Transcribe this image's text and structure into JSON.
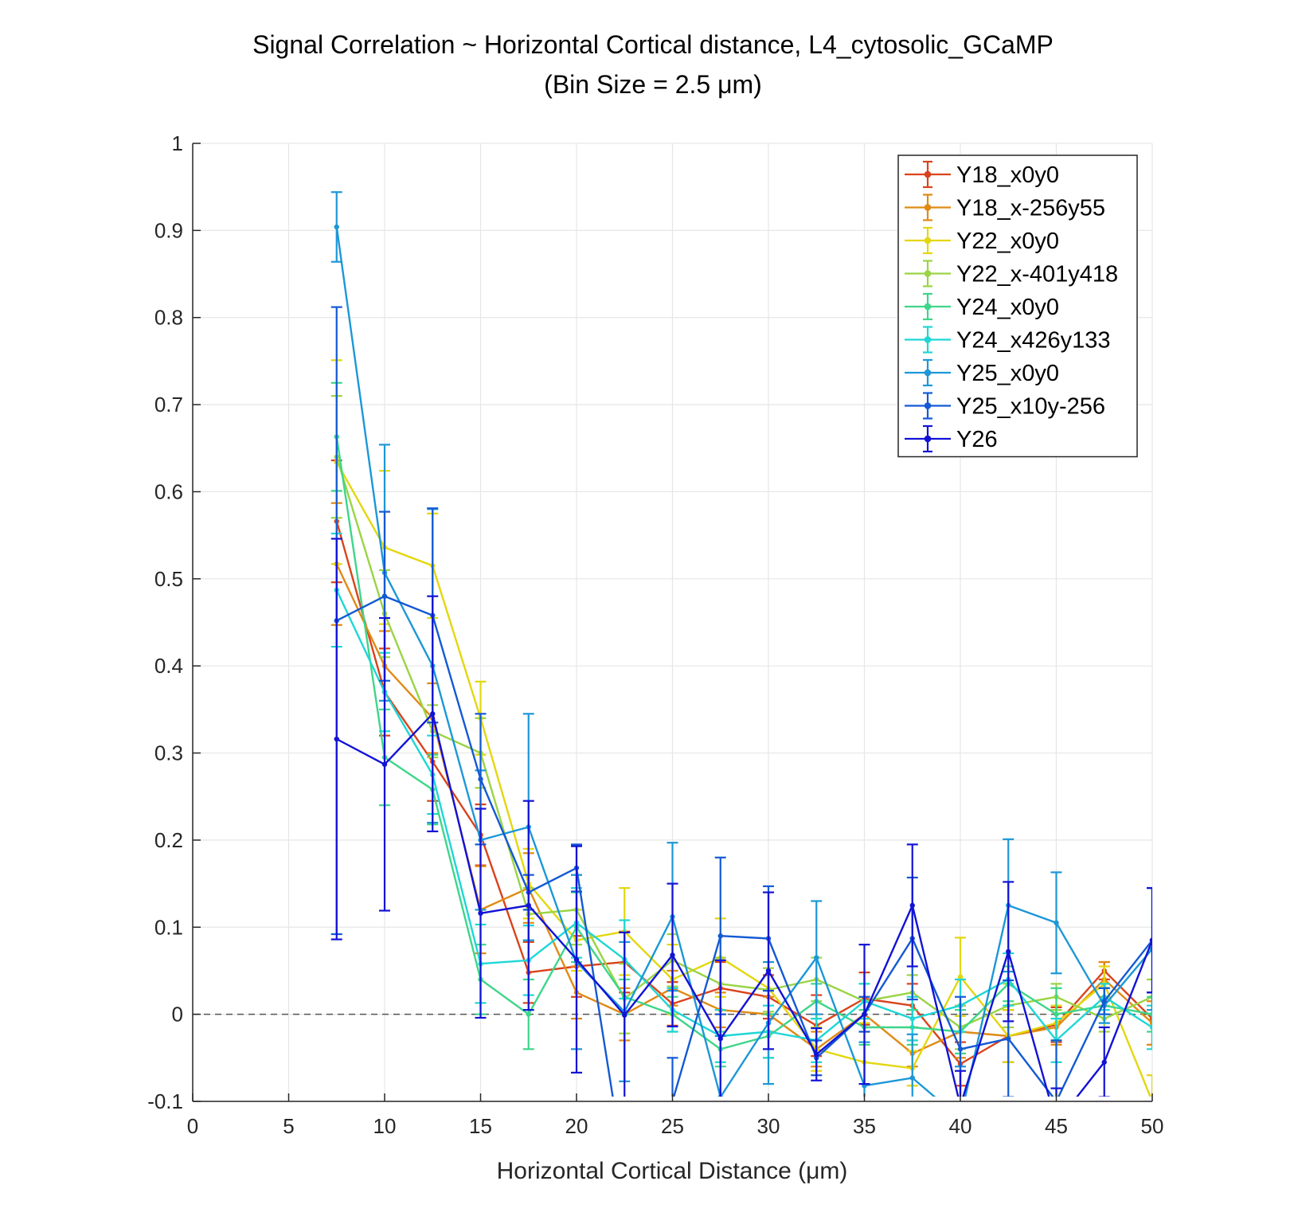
{
  "chart_data": {
    "type": "line",
    "title_line1": "Signal Correlation ~ Horizontal Cortical distance, L4_cytosolic_GCaMP",
    "title_line2": "(Bin Size = 2.5 μm)",
    "xlabel": "Horizontal Cortical Distance (μm)",
    "ylabel": "",
    "xlim": [
      0,
      50
    ],
    "ylim": [
      -0.1,
      1
    ],
    "xticks": [
      0,
      5,
      10,
      15,
      20,
      25,
      30,
      35,
      40,
      45,
      50
    ],
    "yticks": [
      -0.1,
      0,
      0.1,
      0.2,
      0.3,
      0.4,
      0.5,
      0.6,
      0.7,
      0.8,
      0.9,
      1
    ],
    "xtick_labels": [
      "0",
      "5",
      "10",
      "15",
      "20",
      "25",
      "30",
      "35",
      "40",
      "45",
      "50"
    ],
    "ytick_labels": [
      "-0.1",
      "0",
      "0.1",
      "0.2",
      "0.3",
      "0.4",
      "0.5",
      "0.6",
      "0.7",
      "0.8",
      "0.9",
      "1"
    ],
    "grid": true,
    "reference_line": 0,
    "legend_position": "top-right",
    "x": [
      7.5,
      10,
      12.5,
      15,
      17.5,
      20,
      22.5,
      25,
      27.5,
      30,
      32.5,
      35,
      37.5,
      40,
      42.5,
      45,
      47.5,
      50
    ],
    "series": [
      {
        "name": "Y18_x0y0",
        "color": "#d9431c",
        "values": [
          0.566,
          0.37,
          0.29,
          0.206,
          0.048,
          0.055,
          0.06,
          0.012,
          0.03,
          0.02,
          -0.013,
          0.018,
          0.01,
          -0.057,
          -0.025,
          -0.012,
          0.05,
          -0.005
        ],
        "err": [
          0.07,
          0.05,
          0.045,
          0.035,
          0.035,
          0.035,
          0.035,
          0.025,
          0.03,
          0.025,
          0.035,
          0.03,
          0.025,
          0.025,
          0.03,
          0.02,
          0.01,
          0.03
        ]
      },
      {
        "name": "Y18_x-256y55",
        "color": "#e08a14",
        "values": [
          0.517,
          0.4,
          0.34,
          0.12,
          0.145,
          0.025,
          0.0,
          0.03,
          0.005,
          0.0,
          -0.04,
          0.0,
          -0.045,
          -0.02,
          -0.025,
          -0.015,
          0.04,
          -0.01
        ],
        "err": [
          0.07,
          0.04,
          0.04,
          0.05,
          0.04,
          0.03,
          0.03,
          0.02,
          0.02,
          0.02,
          0.02,
          0.02,
          0.015,
          0.03,
          0.03,
          0.02,
          0.02,
          0.025
        ]
      },
      {
        "name": "Y22_x0y0",
        "color": "#e3d70f",
        "values": [
          0.634,
          0.536,
          0.515,
          0.34,
          0.15,
          0.085,
          0.095,
          0.04,
          0.065,
          0.03,
          -0.04,
          -0.055,
          -0.062,
          0.043,
          -0.025,
          -0.01,
          0.035,
          -0.1
        ],
        "err": [
          0.117,
          0.088,
          0.06,
          0.042,
          0.04,
          0.035,
          0.05,
          0.04,
          0.045,
          0.03,
          0.025,
          0.045,
          0.02,
          0.045,
          0.03,
          0.02,
          0.02,
          0.03
        ]
      },
      {
        "name": "Y22_x-401y418",
        "color": "#9ad444",
        "values": [
          0.64,
          0.46,
          0.325,
          0.3,
          0.115,
          0.12,
          0.018,
          0.062,
          0.035,
          0.028,
          0.04,
          0.015,
          0.025,
          -0.015,
          0.01,
          0.02,
          -0.005,
          0.02
        ],
        "err": [
          0.07,
          0.05,
          0.03,
          0.04,
          0.03,
          0.04,
          0.04,
          0.03,
          0.03,
          0.025,
          0.025,
          0.02,
          0.02,
          0.025,
          0.025,
          0.015,
          0.015,
          0.02
        ]
      },
      {
        "name": "Y24_x0y0",
        "color": "#3dd68a",
        "values": [
          0.663,
          0.295,
          0.258,
          0.04,
          0.0,
          0.1,
          0.02,
          0.0,
          -0.04,
          -0.025,
          0.015,
          -0.015,
          -0.015,
          -0.02,
          0.035,
          0.0,
          0.01,
          0.0
        ],
        "err": [
          0.062,
          0.055,
          0.04,
          0.04,
          0.04,
          0.04,
          0.02,
          0.02,
          0.02,
          0.025,
          0.02,
          0.02,
          0.02,
          0.025,
          0.02,
          0.03,
          0.02,
          0.02
        ]
      },
      {
        "name": "Y24_x426y133",
        "color": "#1fd6d6",
        "values": [
          0.487,
          0.37,
          0.275,
          0.058,
          0.062,
          0.105,
          0.063,
          0.005,
          -0.025,
          -0.02,
          -0.03,
          0.015,
          -0.005,
          0.01,
          0.04,
          -0.03,
          0.02,
          -0.015
        ],
        "err": [
          0.065,
          0.045,
          0.045,
          0.045,
          0.04,
          0.04,
          0.045,
          0.025,
          0.03,
          0.03,
          0.025,
          0.02,
          0.025,
          0.03,
          0.03,
          0.025,
          0.015,
          0.025
        ]
      },
      {
        "name": "Y25_x0y0",
        "color": "#1c97d8",
        "values": [
          0.904,
          0.507,
          0.4,
          0.2,
          0.215,
          0.06,
          0.003,
          0.112,
          -0.095,
          -0.01,
          0.065,
          -0.082,
          -0.073,
          -0.12,
          0.125,
          0.105,
          0.01,
          0.075
        ],
        "err": [
          0.04,
          0.147,
          0.18,
          0.08,
          0.13,
          0.1,
          0.08,
          0.085,
          0.07,
          0.07,
          0.065,
          0.05,
          0.05,
          0.06,
          0.076,
          0.058,
          0.02,
          0.07
        ]
      },
      {
        "name": "Y25_x10y-256",
        "color": "#1459d4",
        "values": [
          0.452,
          0.48,
          0.458,
          0.27,
          0.14,
          0.168,
          -0.18,
          -0.1,
          0.09,
          0.087,
          -0.05,
          0.0,
          0.087,
          -0.04,
          -0.028,
          -0.1,
          0.015,
          0.085
        ],
        "err": [
          0.36,
          0.097,
          0.123,
          0.075,
          0.02,
          0.027,
          0.03,
          0.05,
          0.09,
          0.06,
          0.02,
          0.02,
          0.07,
          0.06,
          0.067,
          0.07,
          0.015,
          0.06
        ]
      },
      {
        "name": "Y26",
        "color": "#1212d6",
        "values": [
          0.316,
          0.287,
          0.345,
          0.116,
          0.125,
          0.063,
          -0.001,
          0.068,
          -0.028,
          0.05,
          -0.046,
          0.0,
          0.125,
          -0.105,
          0.072,
          -0.125,
          -0.055,
          0.085
        ],
        "err": [
          0.23,
          0.168,
          0.135,
          0.12,
          0.12,
          0.13,
          0.095,
          0.082,
          0.09,
          0.09,
          0.03,
          0.08,
          0.07,
          0.04,
          0.08,
          0.04,
          0.04,
          0.06
        ]
      }
    ]
  }
}
